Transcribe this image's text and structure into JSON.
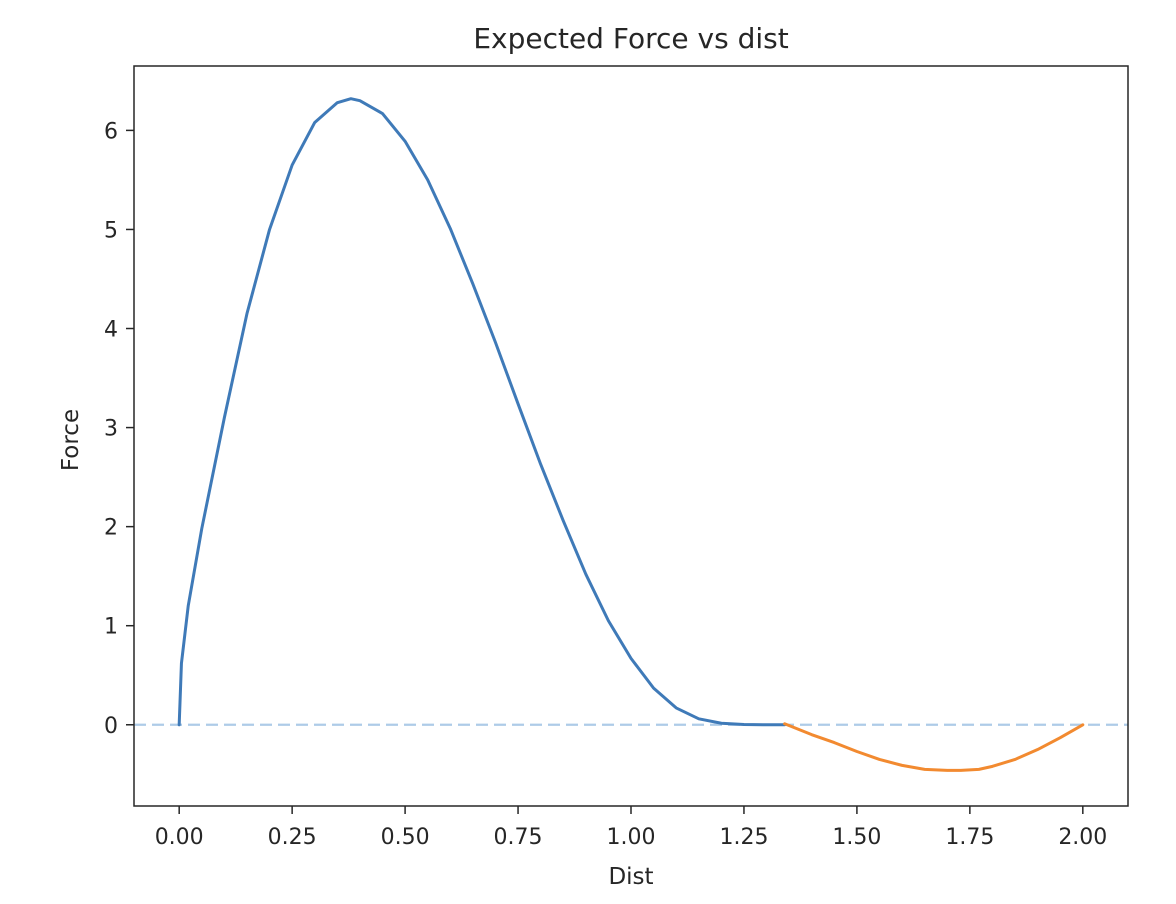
{
  "chart_data": {
    "type": "line",
    "title": "Expected Force vs dist",
    "xlabel": "Dist",
    "ylabel": "Force",
    "xlim": [
      -0.1,
      2.1
    ],
    "ylim": [
      -0.82,
      6.65
    ],
    "xticks": [
      "0.00",
      "0.25",
      "0.50",
      "0.75",
      "1.00",
      "1.25",
      "1.50",
      "1.75",
      "2.00"
    ],
    "yticks": [
      "0",
      "1",
      "2",
      "3",
      "4",
      "5",
      "6"
    ],
    "grid": false,
    "legend": "none",
    "reference_line": {
      "y": 0,
      "style": "dashed",
      "color": "#aecbe8"
    },
    "series": [
      {
        "color": "#3f7ab8",
        "x": [
          0.0,
          0.005,
          0.02,
          0.05,
          0.1,
          0.15,
          0.2,
          0.25,
          0.3,
          0.35,
          0.38,
          0.4,
          0.45,
          0.5,
          0.55,
          0.6,
          0.65,
          0.7,
          0.75,
          0.8,
          0.85,
          0.9,
          0.95,
          1.0,
          1.05,
          1.1,
          1.15,
          1.2,
          1.25,
          1.3,
          1.34
        ],
        "y": [
          0.0,
          0.62,
          1.2,
          1.98,
          3.1,
          4.15,
          5.0,
          5.65,
          6.08,
          6.28,
          6.32,
          6.3,
          6.17,
          5.89,
          5.5,
          5.01,
          4.45,
          3.86,
          3.24,
          2.63,
          2.06,
          1.52,
          1.05,
          0.67,
          0.37,
          0.17,
          0.06,
          0.015,
          0.003,
          0.0,
          0.0
        ]
      },
      {
        "color": "#f28a30",
        "x": [
          1.34,
          1.4,
          1.45,
          1.5,
          1.55,
          1.6,
          1.65,
          1.7,
          1.73,
          1.77,
          1.8,
          1.85,
          1.9,
          1.95,
          2.0
        ],
        "y": [
          0.01,
          -0.1,
          -0.18,
          -0.27,
          -0.35,
          -0.41,
          -0.45,
          -0.46,
          -0.46,
          -0.45,
          -0.42,
          -0.35,
          -0.25,
          -0.13,
          0.0
        ]
      }
    ]
  }
}
